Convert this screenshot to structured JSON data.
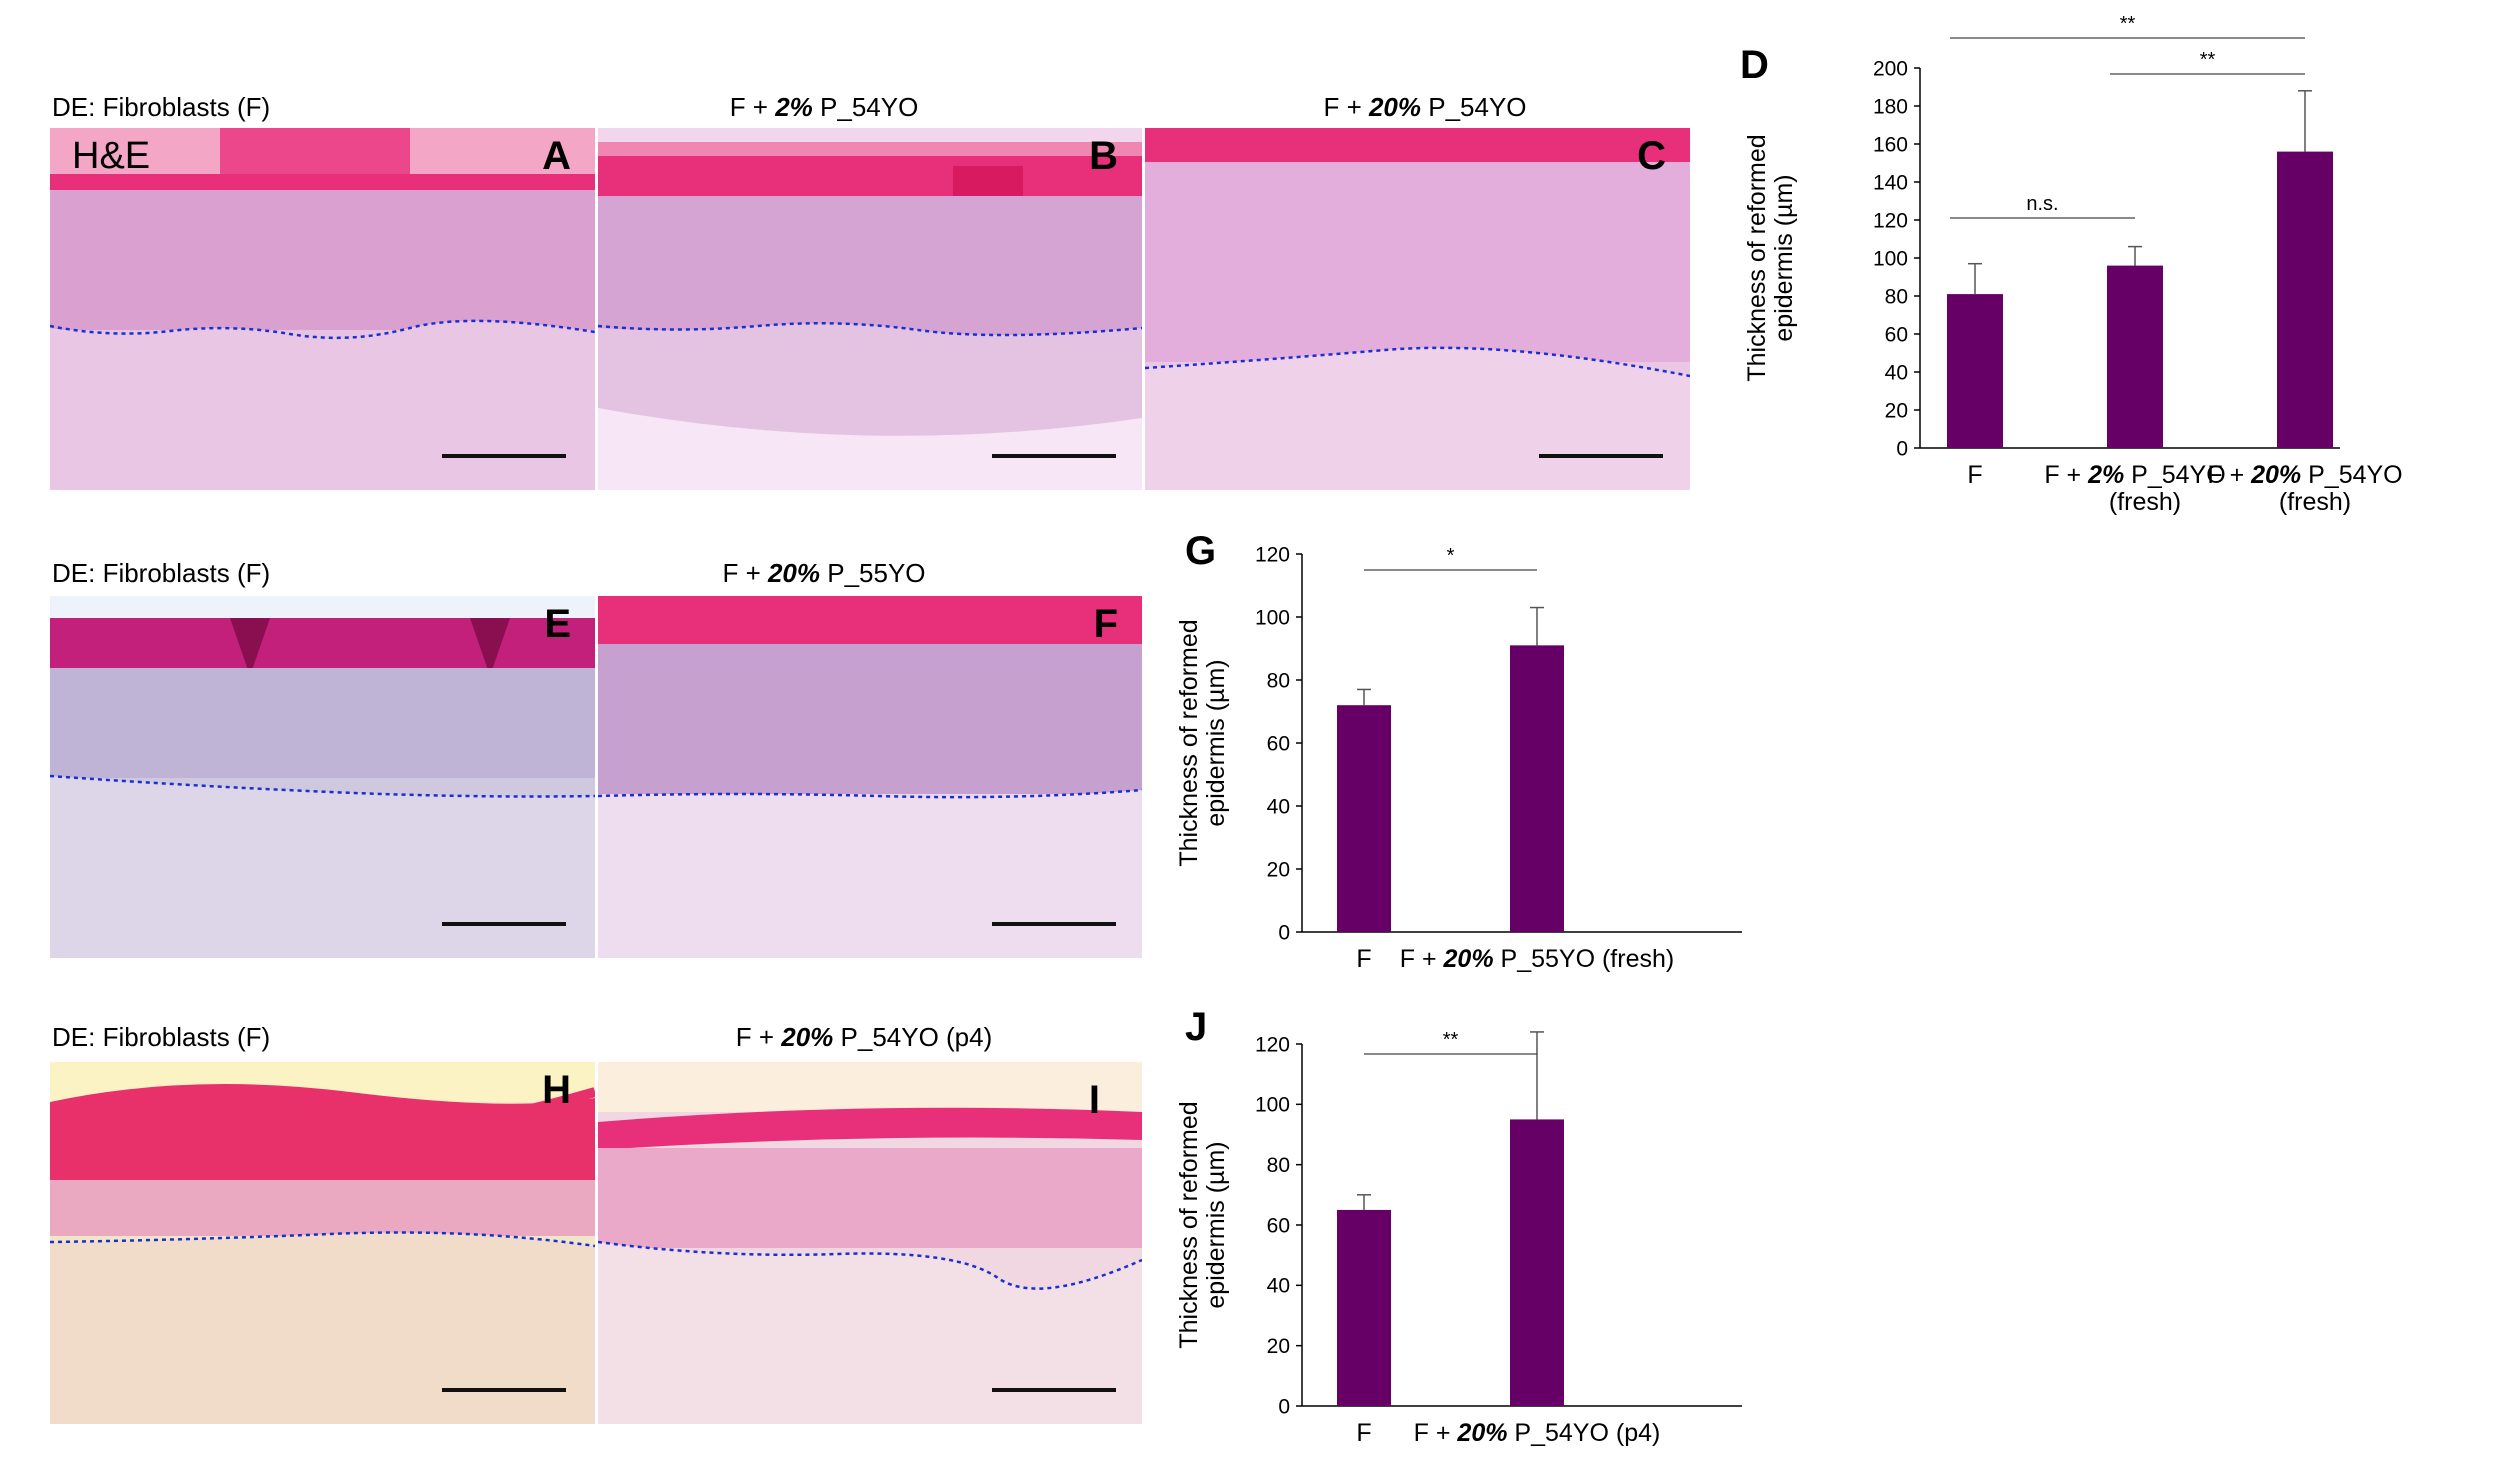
{
  "rows": [
    {
      "caption_left": "DE: Fibroblasts (F)",
      "caption_mid": {
        "pre": "F + ",
        "bold": "2%",
        "post": " P_54YO"
      },
      "caption_right": {
        "pre": "F + ",
        "bold": "20%",
        "post": " P_54YO"
      },
      "he_label": "H&E",
      "panel_labels": [
        "A",
        "B",
        "C"
      ]
    },
    {
      "caption_left": "DE: Fibroblasts (F)",
      "caption_mid": {
        "pre": "F + ",
        "bold": "20%",
        "post": " P_55YO"
      },
      "panel_labels": [
        "E",
        "F"
      ]
    },
    {
      "caption_left": "DE: Fibroblasts (F)",
      "caption_mid": {
        "pre": "F + ",
        "bold": "20%",
        "post": " P_54YO (p4)"
      },
      "panel_labels": [
        "H",
        "I"
      ]
    }
  ],
  "colors": {
    "bar": "#660066",
    "stratum_corneum": "#e8307a",
    "epidermis": "#d9a0d0",
    "dermis": "#e8c6e4",
    "dashed_line": "#1a2fd0"
  },
  "chart_data": [
    {
      "panel": "D",
      "type": "bar",
      "ylabel_lines": [
        "Thickness of reformed",
        "epidermis (µm)"
      ],
      "ylim": [
        0,
        200
      ],
      "yticks": [
        0,
        20,
        40,
        60,
        80,
        100,
        120,
        140,
        160,
        180,
        200
      ],
      "categories": [
        {
          "line1": {
            "pre": "F",
            "bold": "",
            "post": ""
          },
          "line2": ""
        },
        {
          "line1": {
            "pre": "F + ",
            "bold": "2%",
            "post": " P_54YO"
          },
          "line2": "(fresh)"
        },
        {
          "line1": {
            "pre": "F + ",
            "bold": "20%",
            "post": " P_54YO"
          },
          "line2": "(fresh)"
        }
      ],
      "values": [
        81,
        96,
        156
      ],
      "errors": [
        16,
        10,
        32
      ],
      "significance": [
        {
          "from": 0,
          "to": 2,
          "label": "**"
        },
        {
          "from": 1,
          "to": 2,
          "label": "**"
        },
        {
          "from": 0,
          "to": 1,
          "label": "n.s."
        }
      ]
    },
    {
      "panel": "G",
      "type": "bar",
      "ylabel_lines": [
        "Thickness of reformed",
        "epidermis (µm)"
      ],
      "ylim": [
        0,
        120
      ],
      "yticks": [
        0,
        20,
        40,
        60,
        80,
        100,
        120
      ],
      "categories": [
        {
          "line1": {
            "pre": "F",
            "bold": "",
            "post": ""
          },
          "line2": ""
        },
        {
          "line1": {
            "pre": "F + ",
            "bold": "20%",
            "post": " P_55YO (fresh)"
          },
          "line2": ""
        }
      ],
      "values": [
        72,
        91
      ],
      "errors": [
        5,
        12
      ],
      "significance": [
        {
          "from": 0,
          "to": 1,
          "label": "*"
        }
      ]
    },
    {
      "panel": "J",
      "type": "bar",
      "ylabel_lines": [
        "Thickness of reformed",
        "epidermis (µm)"
      ],
      "ylim": [
        0,
        120
      ],
      "yticks": [
        0,
        20,
        40,
        60,
        80,
        100,
        120
      ],
      "categories": [
        {
          "line1": {
            "pre": "F",
            "bold": "",
            "post": ""
          },
          "line2": ""
        },
        {
          "line1": {
            "pre": "F + ",
            "bold": "20%",
            "post": " P_54YO (p4)"
          },
          "line2": ""
        }
      ],
      "values": [
        65,
        95
      ],
      "errors": [
        5,
        29
      ],
      "significance": [
        {
          "from": 0,
          "to": 1,
          "label": "**"
        }
      ]
    }
  ]
}
